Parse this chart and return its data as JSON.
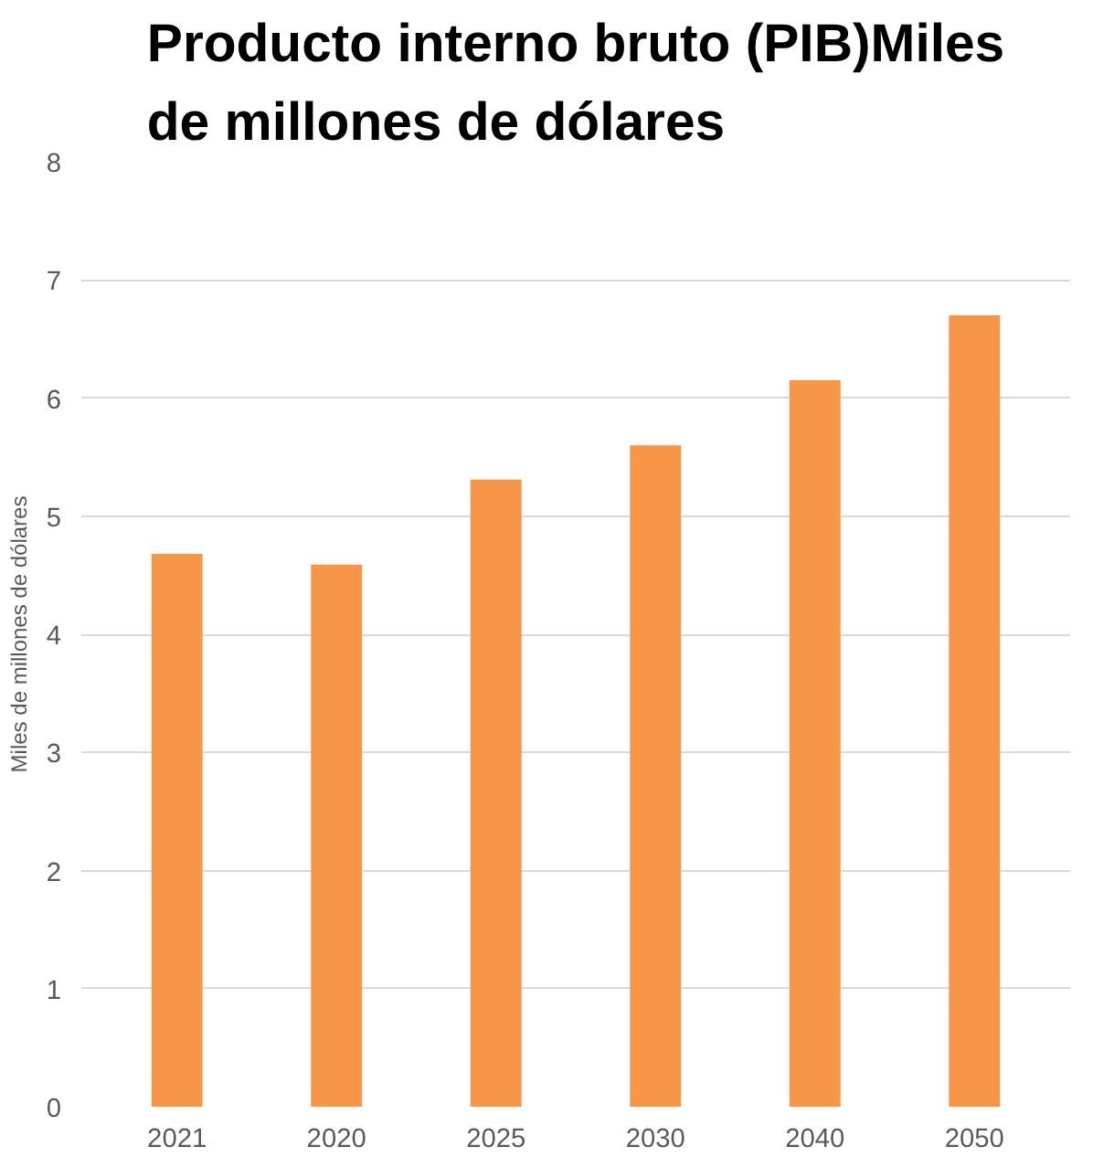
{
  "chart_data": {
    "type": "bar",
    "title": "Producto interno bruto (PIB)Miles\nde millones de dólares",
    "ylabel": "Miles de millones de dólares",
    "categories": [
      "2021",
      "2020",
      "2025",
      "2030",
      "2040",
      "2050"
    ],
    "values": [
      4.68,
      4.59,
      5.31,
      5.6,
      6.15,
      6.7
    ],
    "color": "#f79646",
    "ylim": [
      0,
      8
    ],
    "yticks": [
      0,
      1,
      2,
      3,
      4,
      5,
      6,
      7,
      8
    ],
    "grid": "y"
  }
}
